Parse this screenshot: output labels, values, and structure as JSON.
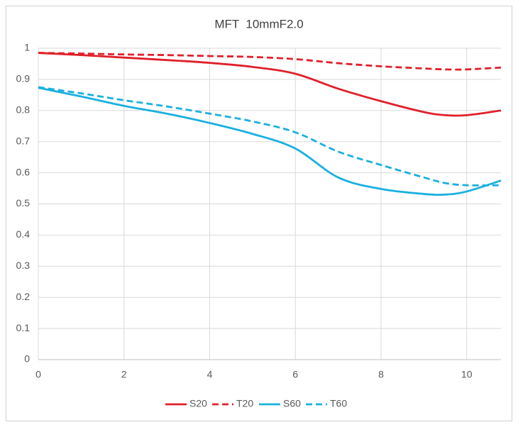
{
  "chart_data": {
    "type": "line",
    "title": "MFT  10mmF2.0",
    "x": [
      0,
      1,
      2,
      3,
      4,
      5,
      6,
      7,
      8,
      9,
      9.5,
      10,
      10.8
    ],
    "series": [
      {
        "name": "S20",
        "color": "#e0202a",
        "dashed": false,
        "values": [
          0.985,
          0.978,
          0.97,
          0.962,
          0.953,
          0.94,
          0.918,
          0.87,
          0.83,
          0.795,
          0.785,
          0.785,
          0.8
        ]
      },
      {
        "name": "T20",
        "color": "#e0202a",
        "dashed": true,
        "values": [
          0.985,
          0.983,
          0.98,
          0.978,
          0.975,
          0.972,
          0.965,
          0.952,
          0.942,
          0.935,
          0.932,
          0.932,
          0.938
        ]
      },
      {
        "name": "S60",
        "color": "#1ab0e0",
        "dashed": false,
        "values": [
          0.873,
          0.845,
          0.815,
          0.79,
          0.76,
          0.725,
          0.678,
          0.585,
          0.548,
          0.532,
          0.53,
          0.54,
          0.575
        ]
      },
      {
        "name": "T60",
        "color": "#1ab0e0",
        "dashed": true,
        "values": [
          0.875,
          0.855,
          0.833,
          0.813,
          0.79,
          0.765,
          0.73,
          0.668,
          0.625,
          0.585,
          0.567,
          0.56,
          0.56
        ]
      }
    ],
    "xlim": [
      0,
      10.8
    ],
    "xticks": [
      0,
      2,
      4,
      6,
      8,
      10
    ],
    "ylim": [
      0,
      1
    ],
    "yticks": [
      0,
      0.1,
      0.2,
      0.3,
      0.4,
      0.5,
      0.6,
      0.7,
      0.8,
      0.9,
      1
    ],
    "grid": true,
    "legend": "bottom"
  }
}
